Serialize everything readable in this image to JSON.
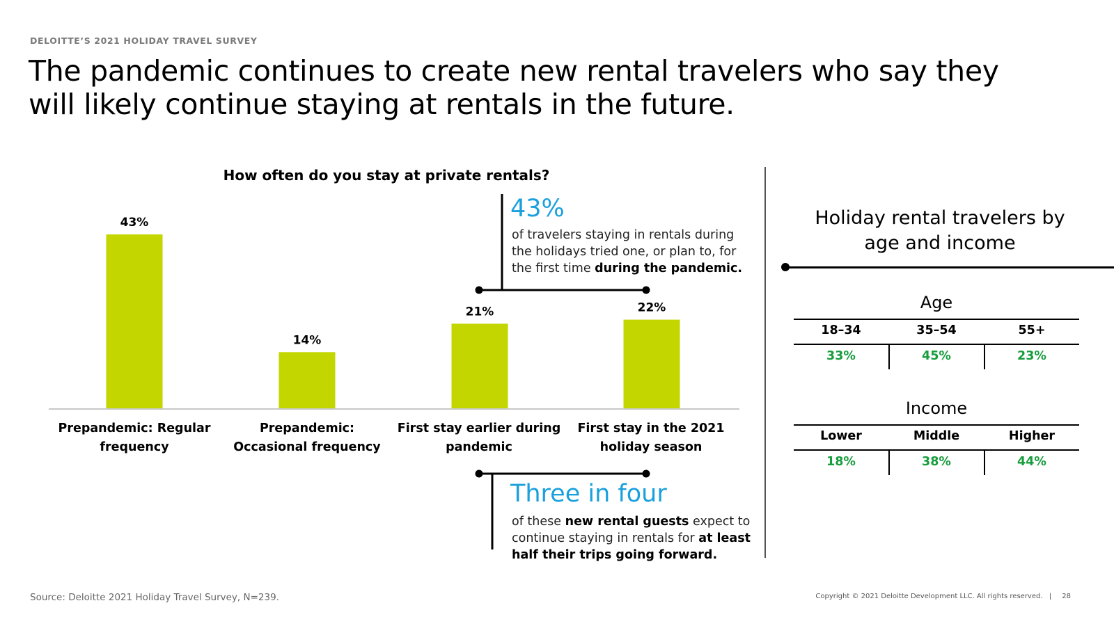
{
  "header": {
    "eyebrow": "DELOITTE’S 2021 HOLIDAY TRAVEL SURVEY",
    "headline": "The pandemic continues to create new rental travelers who say they will likely continue staying at rentals in the future."
  },
  "colors": {
    "bar": "#c3d600",
    "accent_blue": "#1aa0dd",
    "value_green": "#169d3c"
  },
  "chart_data": {
    "type": "bar",
    "title": "How often do you stay at private rentals?",
    "categories": [
      "Prepandemic: Regular frequency",
      "Prepandemic: Occasional frequency",
      "First stay earlier during pandemic",
      "First stay in the 2021 holiday season"
    ],
    "values": [
      43,
      14,
      21,
      22
    ],
    "value_labels": [
      "43%",
      "14%",
      "21%",
      "22%"
    ],
    "unit": "%",
    "ylim": [
      0,
      43
    ],
    "grid": false,
    "legend": "none"
  },
  "callouts": {
    "top": {
      "big": "43%",
      "line1": "of travelers staying in rentals during",
      "line2": "the holidays tried one, or plan to, for",
      "line3_plain": "the first time ",
      "line3_bold": "during the pandemic."
    },
    "bottom": {
      "big": "Three in four",
      "line1_plain": "of these ",
      "line1_bold": "new rental guests",
      "line1_plain2": " expect to",
      "line2_plain": "continue staying in rentals for ",
      "line2_bold": "at least",
      "line3_bold": "half their trips going forward."
    }
  },
  "right_panel": {
    "title_line1": "Holiday rental travelers by",
    "title_line2": "age and income",
    "age": {
      "title": "Age",
      "headers": [
        "18–34",
        "35–54",
        "55+"
      ],
      "values": [
        "33%",
        "45%",
        "23%"
      ]
    },
    "income": {
      "title": "Income",
      "headers": [
        "Lower",
        "Middle",
        "Higher"
      ],
      "values": [
        "18%",
        "38%",
        "44%"
      ]
    }
  },
  "footer": {
    "source": "Source: Deloitte 2021 Holiday Travel Survey, N=239.",
    "copyright": "Copyright © 2021 Deloitte Development LLC. All rights reserved.",
    "separator": "|",
    "page_number": "28"
  }
}
